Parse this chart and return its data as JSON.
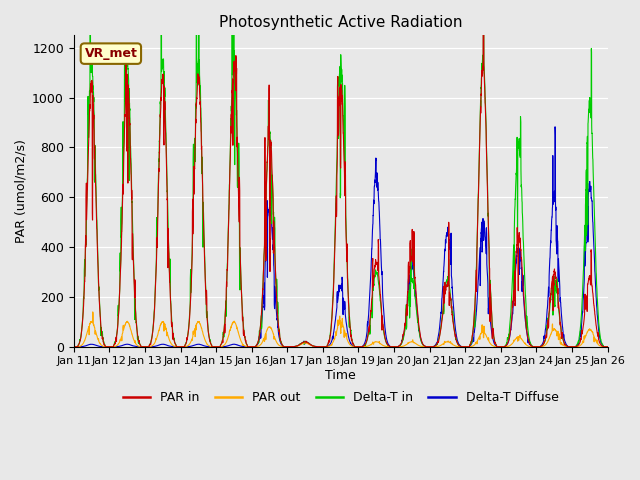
{
  "title": "Photosynthetic Active Radiation",
  "xlabel": "Time",
  "ylabel": "PAR (umol/m2/s)",
  "ylim": [
    0,
    1250
  ],
  "yticks": [
    0,
    200,
    400,
    600,
    800,
    1000,
    1200
  ],
  "legend_labels": [
    "PAR in",
    "PAR out",
    "Delta-T in",
    "Delta-T Diffuse"
  ],
  "legend_colors": [
    "#cc0000",
    "#ffaa00",
    "#00cc00",
    "#0000cc"
  ],
  "box_label": "VR_met",
  "box_facecolor": "#ffffcc",
  "box_edgecolor": "#886600",
  "box_textcolor": "#880000",
  "bg_color": "#e8e8e8",
  "plot_bg_color": "#e8e8e8",
  "xtick_labels": [
    "Jan 11",
    "Jan 12",
    "Jan 13",
    "Jan 14",
    "Jan 15",
    "Jan 16",
    "Jan 17",
    "Jan 18",
    "Jan 19",
    "Jan 20",
    "Jan 21",
    "Jan 22",
    "Jan 23",
    "Jan 24",
    "Jan 25",
    "Jan 26"
  ],
  "n_points": 3600,
  "start_day": 11,
  "end_day": 26,
  "par_in_peaks": [
    1050,
    1070,
    1080,
    1080,
    1120,
    860,
    20,
    1055,
    340,
    360,
    250,
    1130,
    450,
    300,
    280
  ],
  "par_out_peaks": [
    100,
    100,
    100,
    100,
    100,
    80,
    15,
    100,
    20,
    20,
    20,
    60,
    40,
    70,
    70
  ],
  "delta_t_peaks": [
    1130,
    1140,
    1140,
    1150,
    1160,
    860,
    20,
    1140,
    300,
    270,
    270,
    1160,
    820,
    270,
    980
  ],
  "delta_d_peaks": [
    10,
    10,
    10,
    10,
    10,
    560,
    20,
    240,
    700,
    320,
    460,
    510,
    400,
    600,
    650
  ]
}
